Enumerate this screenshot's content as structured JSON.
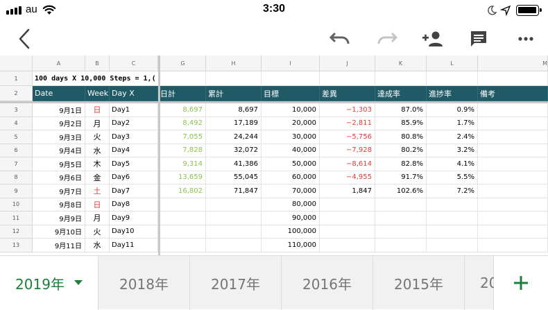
{
  "status_bar": {
    "carrier": "au",
    "time": "3:30"
  },
  "toolbar": {
    "back_icon": "chevron-left-icon",
    "undo_icon": "undo-icon",
    "redo_icon": "redo-icon",
    "share_icon": "add-person-icon",
    "comment_icon": "comment-icon",
    "more_icon": "more-horizontal-icon"
  },
  "colors": {
    "header_teal": "#1f5a66",
    "steps_green": "#8bc34a",
    "negative_red": "#e53935",
    "accent_green": "#188038"
  },
  "column_headers": [
    "A",
    "B",
    "C",
    "G",
    "H",
    "I",
    "J",
    "K",
    "L",
    "M"
  ],
  "row1": {
    "num": "1",
    "title": "100 days X 10,000 Steps = 1,("
  },
  "row2": {
    "num": "2",
    "labels": [
      "Date",
      "Week",
      "Day X",
      "日計",
      "累計",
      "目標",
      "差異",
      "達成率",
      "進捗率",
      "備考"
    ]
  },
  "data_rows": [
    {
      "num": "3",
      "date": "9月1日",
      "week": "日",
      "day": "Day1",
      "daily": "8,697",
      "cumulative": "8,697",
      "target": "10,000",
      "diff": "−1,303",
      "achieve": "87.0%",
      "progress": "0.9%"
    },
    {
      "num": "4",
      "date": "9月2日",
      "week": "月",
      "day": "Day2",
      "daily": "8,492",
      "cumulative": "17,189",
      "target": "20,000",
      "diff": "−2,811",
      "achieve": "85.9%",
      "progress": "1.7%"
    },
    {
      "num": "5",
      "date": "9月3日",
      "week": "火",
      "day": "Day3",
      "daily": "7,055",
      "cumulative": "24,244",
      "target": "30,000",
      "diff": "−5,756",
      "achieve": "80.8%",
      "progress": "2.4%"
    },
    {
      "num": "6",
      "date": "9月4日",
      "week": "水",
      "day": "Day4",
      "daily": "7,828",
      "cumulative": "32,072",
      "target": "40,000",
      "diff": "−7,928",
      "achieve": "80.2%",
      "progress": "3.2%"
    },
    {
      "num": "7",
      "date": "9月5日",
      "week": "木",
      "day": "Day5",
      "daily": "9,314",
      "cumulative": "41,386",
      "target": "50,000",
      "diff": "−8,614",
      "achieve": "82.8%",
      "progress": "4.1%"
    },
    {
      "num": "8",
      "date": "9月6日",
      "week": "金",
      "day": "Day6",
      "daily": "13,659",
      "cumulative": "55,045",
      "target": "60,000",
      "diff": "−4,955",
      "achieve": "91.7%",
      "progress": "5.5%"
    },
    {
      "num": "9",
      "date": "9月7日",
      "week": "土",
      "day": "Day7",
      "daily": "16,802",
      "cumulative": "71,847",
      "target": "70,000",
      "diff": "1,847",
      "achieve": "102.6%",
      "progress": "7.2%"
    },
    {
      "num": "10",
      "date": "9月8日",
      "week": "日",
      "day": "Day8",
      "daily": "",
      "cumulative": "",
      "target": "80,000",
      "diff": "",
      "achieve": "",
      "progress": ""
    },
    {
      "num": "11",
      "date": "9月9日",
      "week": "月",
      "day": "Day9",
      "daily": "",
      "cumulative": "",
      "target": "90,000",
      "diff": "",
      "achieve": "",
      "progress": ""
    },
    {
      "num": "12",
      "date": "9月10日",
      "week": "火",
      "day": "Day10",
      "daily": "",
      "cumulative": "",
      "target": "100,000",
      "diff": "",
      "achieve": "",
      "progress": ""
    },
    {
      "num": "13",
      "date": "9月11日",
      "week": "水",
      "day": "Day11",
      "daily": "",
      "cumulative": "",
      "target": "110,000",
      "diff": "",
      "achieve": "",
      "progress": ""
    }
  ],
  "sheet_tabs": [
    {
      "label": "2019年",
      "active": true
    },
    {
      "label": "2018年",
      "active": false
    },
    {
      "label": "2017年",
      "active": false
    },
    {
      "label": "2016年",
      "active": false
    },
    {
      "label": "2015年",
      "active": false
    },
    {
      "label": "20",
      "active": false
    }
  ],
  "add_tab_icon": "plus-icon"
}
